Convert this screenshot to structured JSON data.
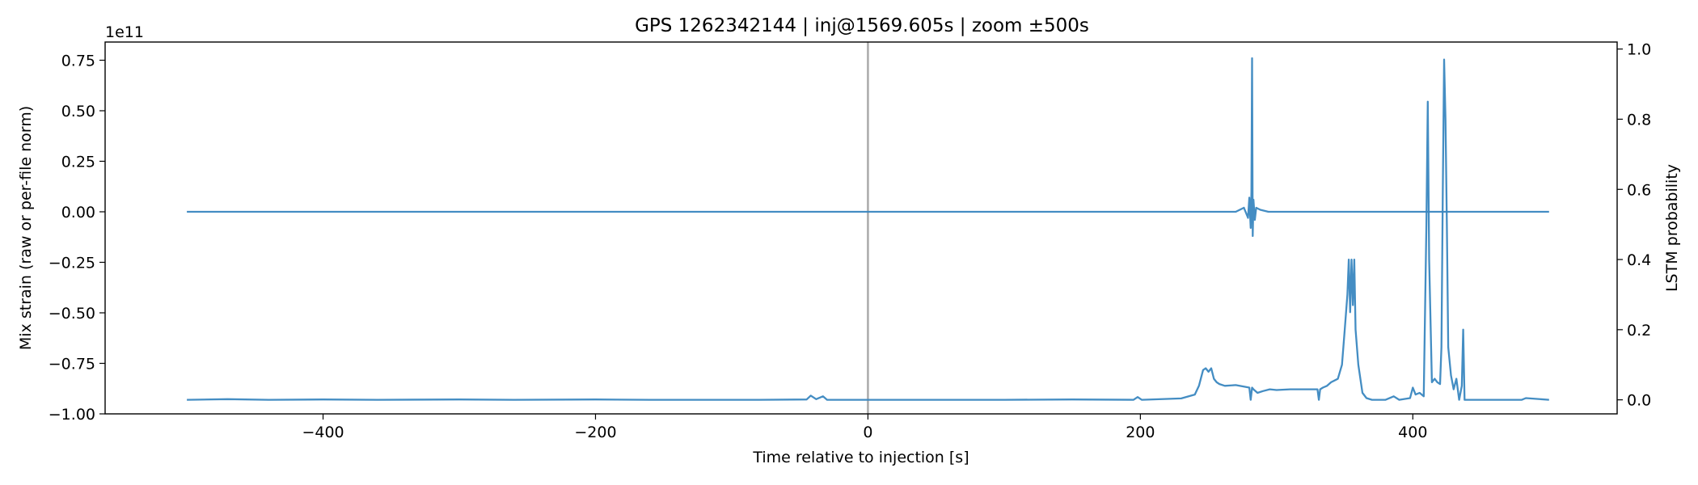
{
  "chart_data": {
    "type": "line",
    "title": "GPS 1262342144 | inj@1569.605s | zoom ±500s",
    "xlabel": "Time relative to injection [s]",
    "ylabel_left": "Mix strain (raw or per-file norm)",
    "ylabel_right": "LSTM probability",
    "left_offset_text": "1e11",
    "xlim": [
      -560,
      550
    ],
    "ylim_left": [
      -1.0,
      0.84
    ],
    "ylim_right": [
      -0.04,
      1.02
    ],
    "x_ticks": [
      -400,
      -200,
      0,
      200,
      400
    ],
    "x_tick_labels": [
      "−400",
      "−200",
      "0",
      "200",
      "400"
    ],
    "y_left_ticks": [
      0.75,
      0.5,
      0.25,
      0.0,
      -0.25,
      -0.5,
      -0.75,
      -1.0
    ],
    "y_left_tick_labels": [
      "0.75",
      "0.50",
      "0.25",
      "0.00",
      "−0.25",
      "−0.50",
      "−0.75",
      "−1.00"
    ],
    "y_right_ticks": [
      0.0,
      0.2,
      0.4,
      0.6,
      0.8,
      1.0
    ],
    "y_right_tick_labels": [
      "0.0",
      "0.2",
      "0.4",
      "0.6",
      "0.8",
      "1.0"
    ],
    "injection_marker_x": 0,
    "grid": false,
    "colors": {
      "series": "#3a87c0",
      "marker": "#aaaaaa"
    },
    "series": [
      {
        "axis": "left",
        "x": [
          -500,
          270,
          276,
          279,
          280,
          281,
          281.5,
          282,
          282.5,
          283,
          284,
          285,
          288,
          294,
          500
        ],
        "y": [
          0.0,
          0.0,
          0.02,
          -0.03,
          0.07,
          -0.08,
          0.1,
          0.76,
          -0.12,
          0.06,
          -0.04,
          0.02,
          0.01,
          0.0,
          0.0
        ]
      },
      {
        "axis": "right",
        "x": [
          -500,
          -470,
          -440,
          -400,
          -360,
          -300,
          -260,
          -200,
          -160,
          -120,
          -80,
          -45,
          -42,
          -38,
          -33,
          -30,
          0,
          50,
          100,
          150,
          195,
          198,
          201,
          230,
          240,
          243,
          246,
          248,
          250,
          252,
          254,
          256,
          258,
          262,
          270,
          280,
          281,
          282,
          283,
          286,
          290,
          295,
          300,
          310,
          320,
          330,
          331,
          332,
          334,
          337,
          340,
          345,
          348,
          350,
          352,
          353,
          354,
          355,
          356,
          357,
          358,
          360,
          363,
          366,
          370,
          380,
          386,
          390,
          398,
          400,
          402,
          405,
          408,
          410,
          411,
          412,
          414,
          416,
          418,
          420,
          421,
          422,
          423,
          424,
          425,
          426,
          428,
          430,
          432,
          434,
          436,
          437,
          438,
          440,
          460,
          480,
          483,
          500
        ],
        "y": [
          0.0,
          0.002,
          0.0,
          0.001,
          0.0,
          0.001,
          0.0,
          0.001,
          0.0,
          0.0,
          0.0,
          0.001,
          0.012,
          0.002,
          0.01,
          0.0,
          0.0,
          0.0,
          0.0,
          0.001,
          0.0,
          0.008,
          0.0,
          0.004,
          0.015,
          0.04,
          0.085,
          0.09,
          0.08,
          0.09,
          0.06,
          0.05,
          0.045,
          0.04,
          0.042,
          0.035,
          0.0,
          0.035,
          0.03,
          0.02,
          0.025,
          0.03,
          0.028,
          0.03,
          0.03,
          0.03,
          0.0,
          0.03,
          0.035,
          0.04,
          0.05,
          0.06,
          0.1,
          0.2,
          0.3,
          0.4,
          0.25,
          0.4,
          0.27,
          0.4,
          0.2,
          0.1,
          0.02,
          0.005,
          0.0,
          0.0,
          0.01,
          0.0,
          0.005,
          0.035,
          0.015,
          0.02,
          0.01,
          0.5,
          0.85,
          0.4,
          0.05,
          0.06,
          0.05,
          0.045,
          0.15,
          0.6,
          0.97,
          0.8,
          0.5,
          0.15,
          0.07,
          0.03,
          0.06,
          0.0,
          0.04,
          0.2,
          0.0,
          0.0,
          0.0,
          0.0,
          0.005,
          0.0
        ]
      }
    ]
  }
}
